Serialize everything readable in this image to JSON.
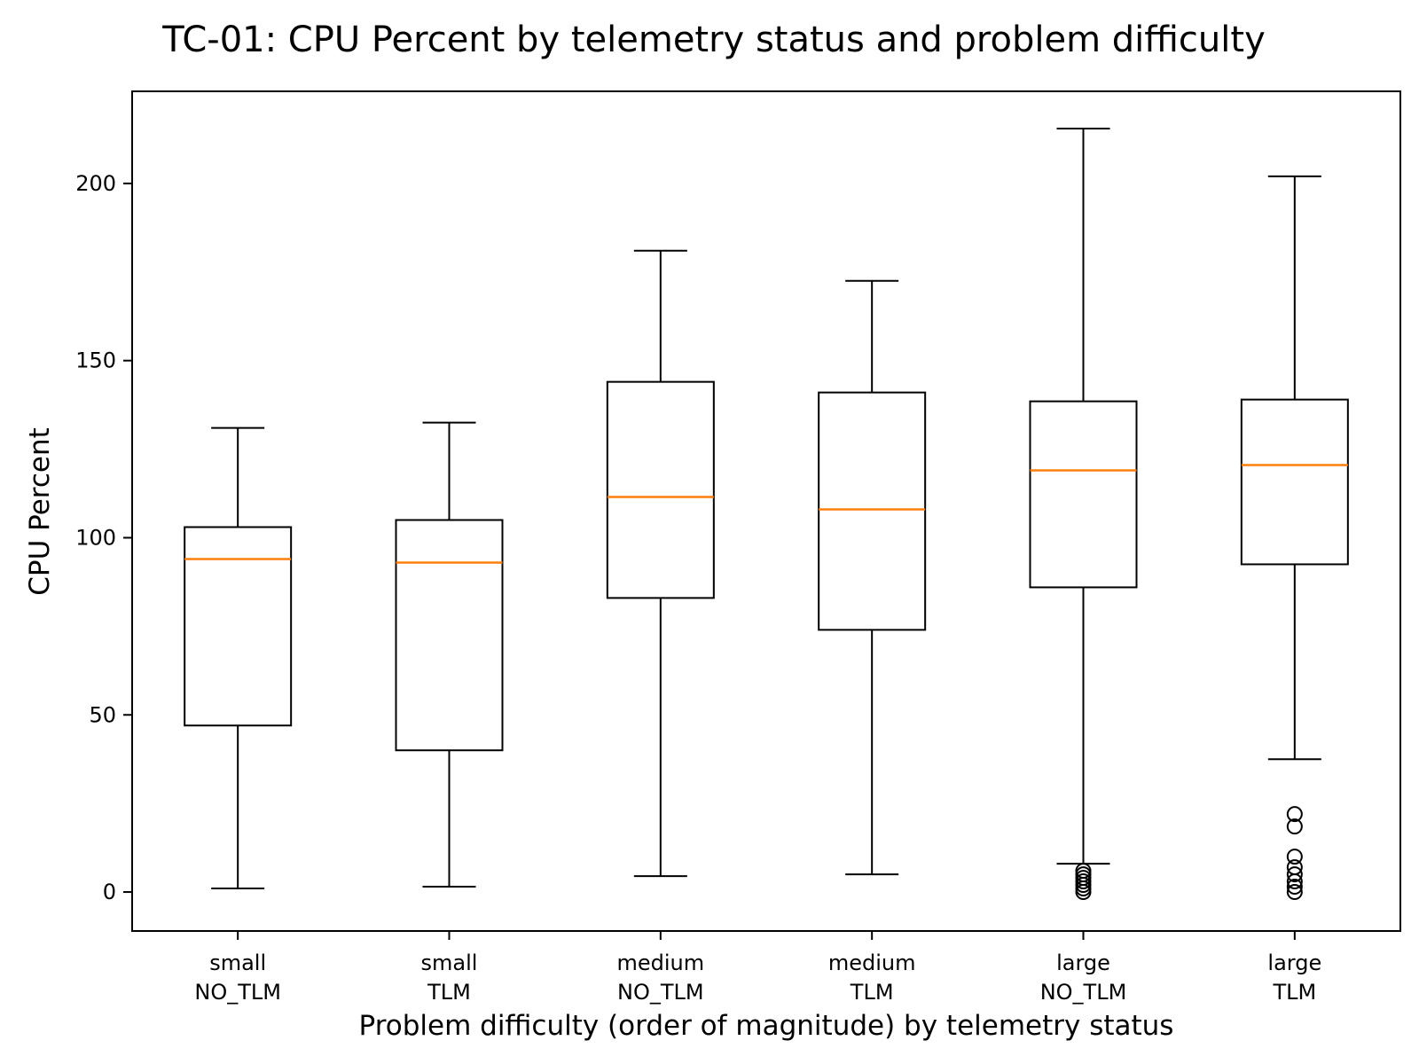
{
  "chart_data": {
    "type": "box",
    "title": "TC-01: CPU Percent by telemetry status and problem difficulty",
    "xlabel": "Problem difficulty (order of magnitude) by telemetry status",
    "ylabel": "CPU Percent",
    "ylim": [
      -11,
      226
    ],
    "yticks": [
      0,
      50,
      100,
      150,
      200
    ],
    "grid": false,
    "colors": {
      "box": "#000000",
      "median": "#ff7f0e",
      "whisker": "#000000",
      "flier": "#000000"
    },
    "categories": [
      [
        "small",
        "NO_TLM"
      ],
      [
        "small",
        "TLM"
      ],
      [
        "medium",
        "NO_TLM"
      ],
      [
        "medium",
        "TLM"
      ],
      [
        "large",
        "NO_TLM"
      ],
      [
        "large",
        "TLM"
      ]
    ],
    "boxes": [
      {
        "whisker_low": 1,
        "q1": 47,
        "median": 94,
        "q3": 103,
        "whisker_high": 131,
        "fliers": []
      },
      {
        "whisker_low": 1.5,
        "q1": 40,
        "median": 93,
        "q3": 105,
        "whisker_high": 132.5,
        "fliers": []
      },
      {
        "whisker_low": 4.5,
        "q1": 83,
        "median": 111.5,
        "q3": 144,
        "whisker_high": 181,
        "fliers": []
      },
      {
        "whisker_low": 5,
        "q1": 74,
        "median": 108,
        "q3": 141,
        "whisker_high": 172.5,
        "fliers": []
      },
      {
        "whisker_low": 8,
        "q1": 86,
        "median": 119,
        "q3": 138.5,
        "whisker_high": 215.5,
        "fliers": [
          0,
          1,
          2,
          3,
          4,
          5,
          6
        ]
      },
      {
        "whisker_low": 37.5,
        "q1": 92.5,
        "median": 120.5,
        "q3": 139,
        "whisker_high": 202,
        "fliers": [
          0,
          1.5,
          3,
          5,
          7,
          10,
          18.5,
          22
        ]
      }
    ]
  }
}
